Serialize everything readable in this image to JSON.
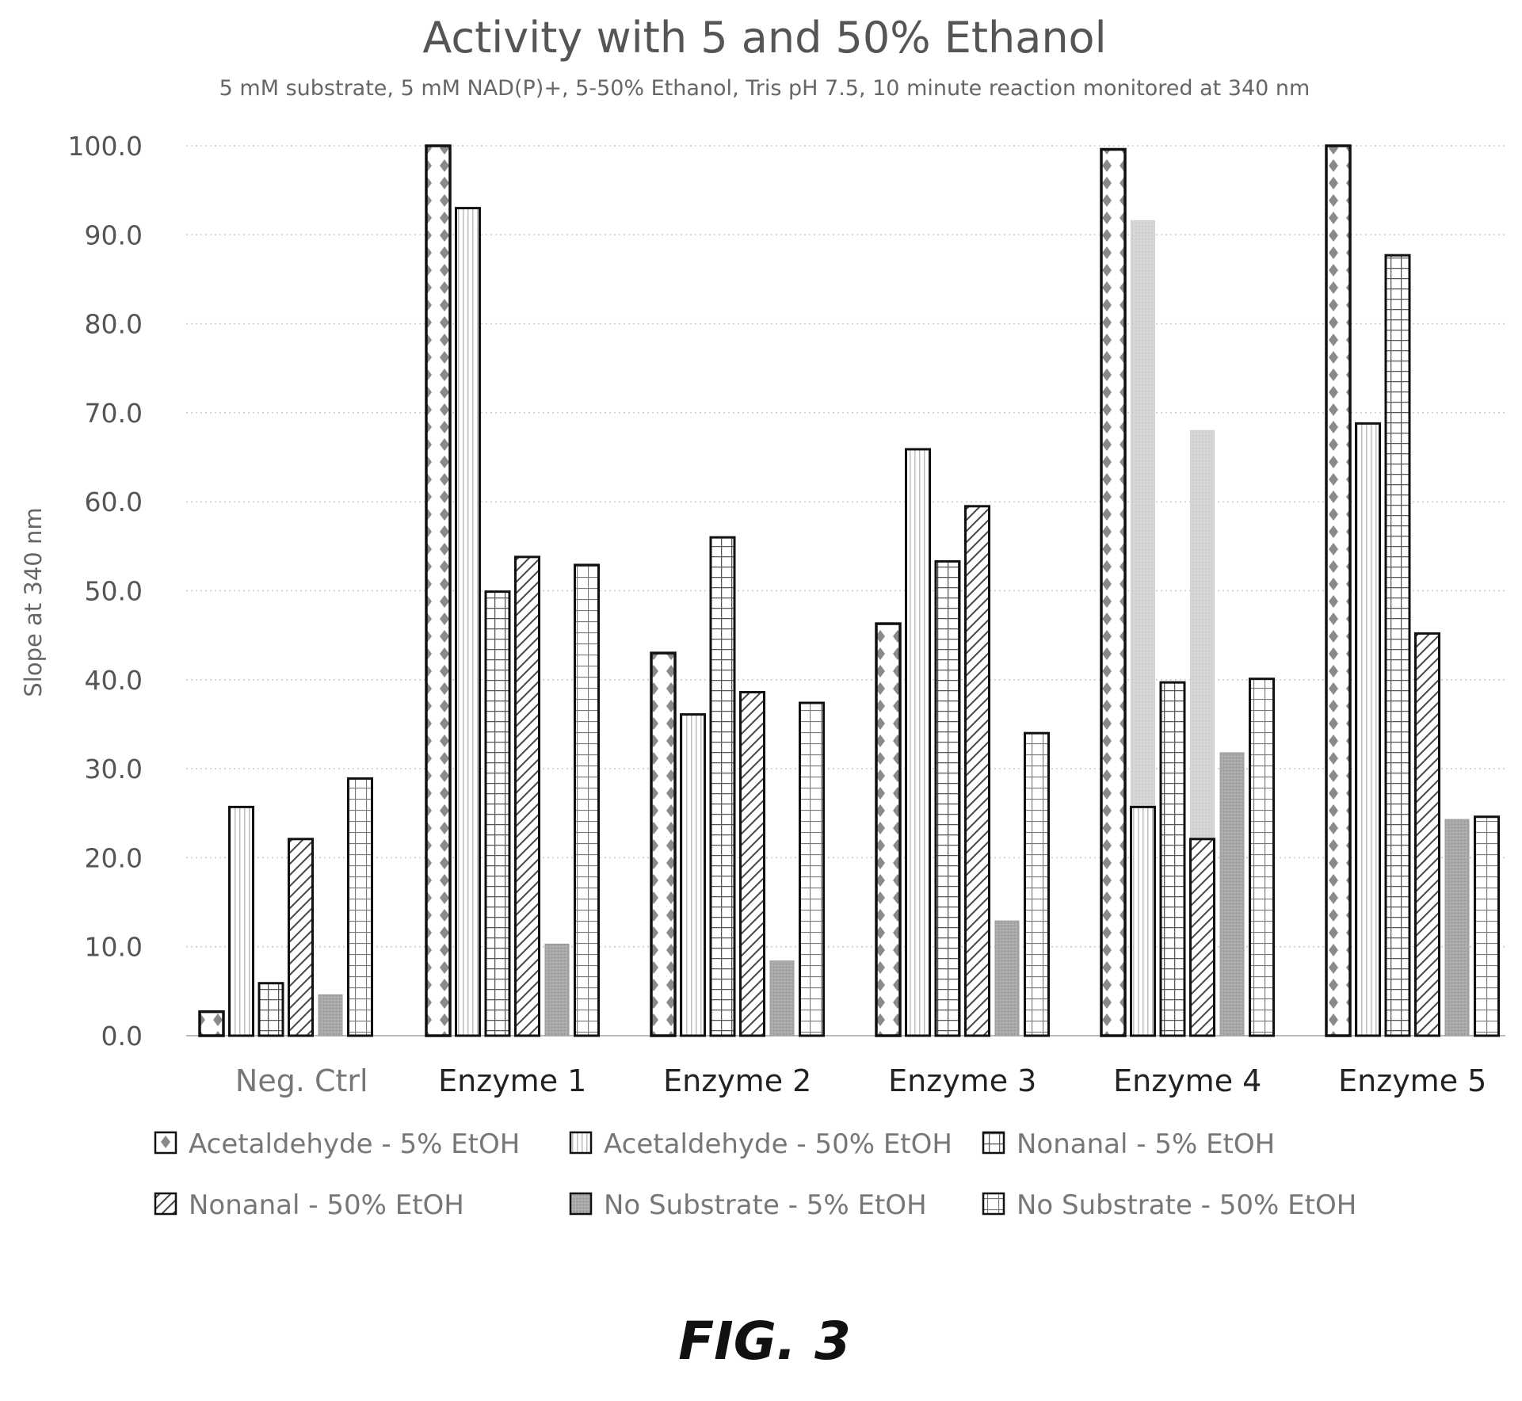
{
  "chart_data": {
    "type": "bar",
    "title": "Activity with 5 and 50% Ethanol",
    "subtitle": "5 mM substrate, 5 mM NAD(P)+, 5-50% Ethanol, Tris pH 7.5, 10 minute reaction monitored at 340 nm",
    "ylabel": "Slope at 340 nm",
    "xlabel": "",
    "ylim": [
      0,
      100
    ],
    "yticks": [
      "0.0",
      "10.0",
      "20.0",
      "30.0",
      "40.0",
      "50.0",
      "60.0",
      "70.0",
      "80.0",
      "90.0",
      "100.0"
    ],
    "categories": [
      "Neg. Ctrl",
      "Enzyme 1",
      "Enzyme 2",
      "Enzyme 3",
      "Enzyme 4",
      "Enzyme 5"
    ],
    "series": [
      {
        "name": "Acetaldehyde - 5% EtOH",
        "values": [
          2.7,
          100.0,
          43.0,
          46.3,
          99.6,
          100.0
        ]
      },
      {
        "name": "Acetaldehyde - 50% EtOH",
        "values": [
          25.7,
          93.0,
          36.1,
          65.9,
          25.7,
          68.8
        ]
      },
      {
        "name": "Nonanal - 5% EtOH",
        "values": [
          5.9,
          49.9,
          56.0,
          53.3,
          39.7,
          87.7
        ]
      },
      {
        "name": "Nonanal - 50% EtOH",
        "values": [
          22.1,
          53.8,
          38.6,
          59.5,
          22.1,
          45.2
        ]
      },
      {
        "name": "No Substrate - 5% EtOH",
        "values": [
          4.6,
          10.3,
          8.4,
          12.9,
          31.8,
          24.3
        ]
      },
      {
        "name": "No Substrate - 50% EtOH",
        "values": [
          28.9,
          52.9,
          37.4,
          34.0,
          40.1,
          24.6
        ]
      }
    ],
    "background_series": [
      {
        "name": "Acetaldehyde - 50% EtOH",
        "category": "Enzyme 4",
        "value": 91.6
      },
      {
        "name": "Nonanal - 50% EtOH",
        "category": "Enzyme 4",
        "value": 68.0
      }
    ],
    "grid": true,
    "legend_position": "bottom"
  },
  "figure_label": "FIG. 3"
}
